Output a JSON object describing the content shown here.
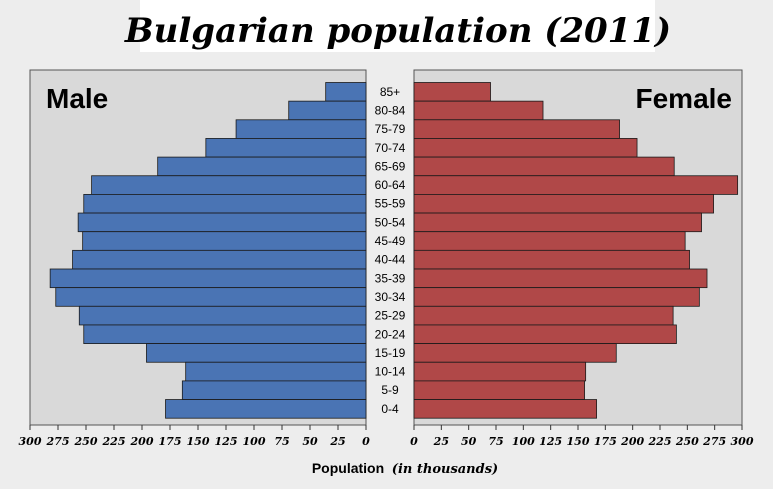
{
  "chart_data": {
    "type": "bar",
    "orientation": "horizontal-pyramid",
    "title": "Bulgarian population (2011)",
    "xlabel": "Population",
    "xlabel_note": "(in thousands)",
    "xlim": [
      0,
      300
    ],
    "ticks": [
      "0",
      "25",
      "50",
      "75",
      "100",
      "125",
      "150",
      "175",
      "200",
      "225",
      "250",
      "275",
      "300"
    ],
    "categories": [
      "85+",
      "80-84",
      "75-79",
      "70-74",
      "65-69",
      "60-64",
      "55-59",
      "50-54",
      "45-49",
      "40-44",
      "35-39",
      "30-34",
      "25-29",
      "20-24",
      "15-19",
      "10-14",
      "5-9",
      "0-4"
    ],
    "series": [
      {
        "name": "Male",
        "color": "#4a74b4",
        "values": [
          36,
          69,
          116,
          143,
          186,
          245,
          252,
          257,
          253,
          262,
          282,
          277,
          256,
          252,
          196,
          161,
          164,
          179
        ]
      },
      {
        "name": "Female",
        "color": "#b04848",
        "values": [
          70,
          118,
          188,
          204,
          238,
          296,
          274,
          263,
          248,
          252,
          268,
          261,
          237,
          240,
          185,
          157,
          156,
          167
        ]
      }
    ]
  }
}
